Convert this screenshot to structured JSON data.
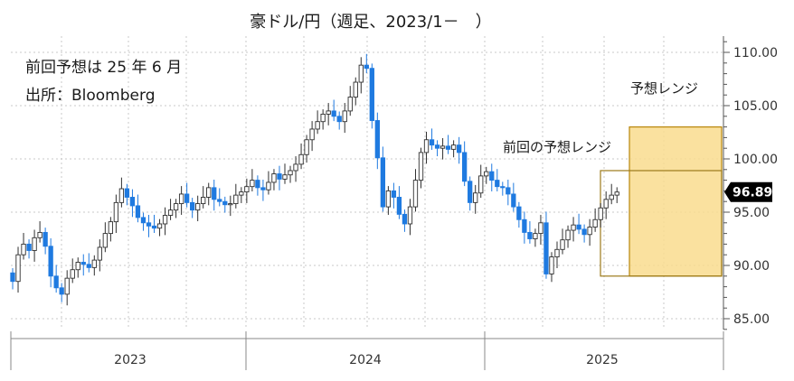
{
  "chart_data": {
    "type": "candlestick",
    "title": "豪ドル/円（週足、2023/1－　）",
    "notes": [
      "前回予想は 25 年 6 月",
      "出所：Bloomberg"
    ],
    "ylim": [
      84,
      111
    ],
    "y_ticks": [
      "110.00",
      "105.00",
      "100.00",
      "95.00",
      "90.00",
      "85.00"
    ],
    "x_ticks": [
      "2023",
      "2024",
      "2025"
    ],
    "grid": true,
    "last_price": "96.89",
    "up_color": "#2f2f2f",
    "down_color": "#1f7ae0",
    "range_fill": "#f9dc8e",
    "range_stroke": "#b8860b",
    "forecast_ranges": [
      {
        "label": "前回の予想レンジ",
        "low": 89.0,
        "high": 98.9
      },
      {
        "label": "予想レンジ",
        "low": 89.0,
        "high": 103.0
      }
    ],
    "closes": [
      88.5,
      91.0,
      92.0,
      91.4,
      92.6,
      93.1,
      91.8,
      89.0,
      87.9,
      87.3,
      88.8,
      89.6,
      90.3,
      90.1,
      89.8,
      90.5,
      91.7,
      93.0,
      94.1,
      95.9,
      97.2,
      96.4,
      95.6,
      94.5,
      94.0,
      93.7,
      93.5,
      93.9,
      94.7,
      95.2,
      95.8,
      96.7,
      95.9,
      95.2,
      95.8,
      96.4,
      97.3,
      96.2,
      96.0,
      95.7,
      95.8,
      96.6,
      96.9,
      97.4,
      98.0,
      97.3,
      97.1,
      97.8,
      98.6,
      98.1,
      98.5,
      98.9,
      99.5,
      100.4,
      101.8,
      102.8,
      103.5,
      104.2,
      104.5,
      104.0,
      103.5,
      104.5,
      105.8,
      107.2,
      108.8,
      108.5,
      103.6,
      100.1,
      95.5,
      97.0,
      96.4,
      94.8,
      93.9,
      95.5,
      98.0,
      100.6,
      101.8,
      101.3,
      101.0,
      101.2,
      100.9,
      101.3,
      100.6,
      97.9,
      95.9,
      96.8,
      98.4,
      98.8,
      98.0,
      97.4,
      97.3,
      96.7,
      95.5,
      94.3,
      93.1,
      92.5,
      93.0,
      94.0,
      89.2,
      90.8,
      91.5,
      92.4,
      93.3,
      93.8,
      93.4,
      92.9,
      93.6,
      94.3,
      95.4,
      96.2,
      96.6,
      96.89
    ]
  }
}
